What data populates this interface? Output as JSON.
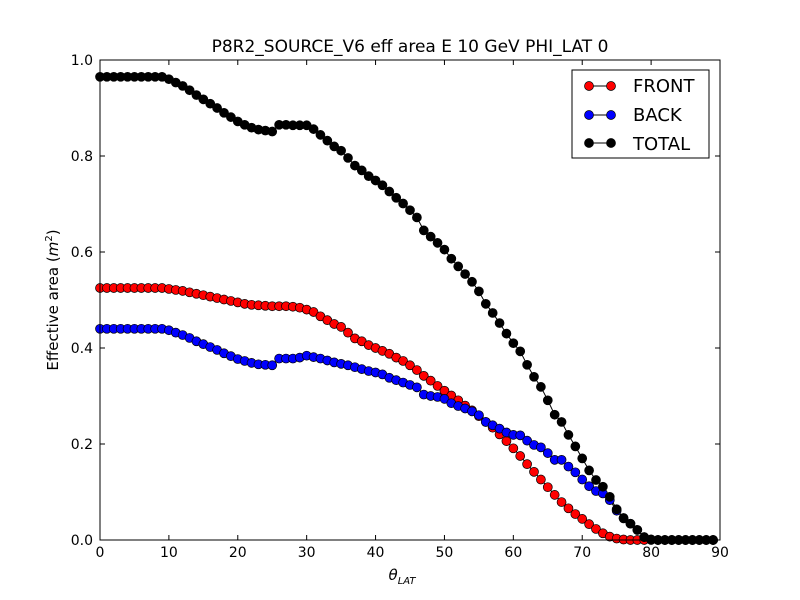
{
  "chart_data": {
    "type": "line",
    "title": "P8R2_SOURCE_V6 eff area E 10 GeV PHI_LAT 0",
    "xlabel_base": "θ",
    "xlabel_sub": "LAT",
    "ylabel_prefix": "Effective area (",
    "ylabel_unit": "m",
    "ylabel_exp": "2",
    "ylabel_suffix": ")",
    "xlim": [
      0,
      90
    ],
    "ylim": [
      0,
      1.0
    ],
    "xticks": [
      0,
      10,
      20,
      30,
      40,
      50,
      60,
      70,
      80,
      90
    ],
    "xtick_labels": [
      "0",
      "10",
      "20",
      "30",
      "40",
      "50",
      "60",
      "70",
      "80",
      "90"
    ],
    "yticks": [
      0,
      0.2,
      0.4,
      0.6,
      0.8,
      1.0
    ],
    "ytick_labels": [
      "0.0",
      "0.2",
      "0.4",
      "0.6",
      "0.8",
      "1.0"
    ],
    "grid": false,
    "legend_position": "top-right",
    "x": [
      0,
      1,
      2,
      3,
      4,
      5,
      6,
      7,
      8,
      9,
      10,
      11,
      12,
      13,
      14,
      15,
      16,
      17,
      18,
      19,
      20,
      21,
      22,
      23,
      24,
      25,
      26,
      27,
      28,
      29,
      30,
      31,
      32,
      33,
      34,
      35,
      36,
      37,
      38,
      39,
      40,
      41,
      42,
      43,
      44,
      45,
      46,
      47,
      48,
      49,
      50,
      51,
      52,
      53,
      54,
      55,
      56,
      57,
      58,
      59,
      60,
      61,
      62,
      63,
      64,
      65,
      66,
      67,
      68,
      69,
      70,
      71,
      72,
      73,
      74,
      75,
      76,
      77,
      78,
      79,
      80,
      81,
      82,
      83,
      84,
      85,
      86,
      87,
      88,
      89
    ],
    "series": [
      {
        "name": "FRONT",
        "color": "#ff0000",
        "values": [
          0.525,
          0.525,
          0.525,
          0.525,
          0.525,
          0.525,
          0.525,
          0.525,
          0.525,
          0.525,
          0.523,
          0.521,
          0.519,
          0.516,
          0.513,
          0.51,
          0.507,
          0.504,
          0.501,
          0.498,
          0.495,
          0.492,
          0.49,
          0.489,
          0.488,
          0.487,
          0.487,
          0.487,
          0.486,
          0.484,
          0.48,
          0.475,
          0.466,
          0.458,
          0.45,
          0.444,
          0.432,
          0.42,
          0.414,
          0.406,
          0.4,
          0.394,
          0.388,
          0.38,
          0.373,
          0.364,
          0.354,
          0.342,
          0.332,
          0.321,
          0.311,
          0.301,
          0.291,
          0.28,
          0.27,
          0.258,
          0.246,
          0.234,
          0.22,
          0.206,
          0.191,
          0.175,
          0.158,
          0.142,
          0.126,
          0.11,
          0.094,
          0.079,
          0.066,
          0.054,
          0.044,
          0.033,
          0.023,
          0.014,
          0.007,
          0.003,
          0.001,
          0.0,
          0.0,
          0.0,
          0.0,
          0.0,
          0.0,
          0.0,
          0.0,
          0.0,
          0.0,
          0.0,
          0.0,
          0.0
        ]
      },
      {
        "name": "BACK",
        "color": "#0000ff",
        "values": [
          0.44,
          0.44,
          0.44,
          0.44,
          0.44,
          0.44,
          0.44,
          0.44,
          0.44,
          0.44,
          0.437,
          0.432,
          0.427,
          0.421,
          0.414,
          0.408,
          0.402,
          0.396,
          0.389,
          0.383,
          0.377,
          0.373,
          0.369,
          0.366,
          0.365,
          0.364,
          0.378,
          0.378,
          0.378,
          0.38,
          0.384,
          0.381,
          0.378,
          0.374,
          0.37,
          0.367,
          0.364,
          0.36,
          0.356,
          0.352,
          0.349,
          0.345,
          0.338,
          0.333,
          0.328,
          0.323,
          0.318,
          0.303,
          0.3,
          0.298,
          0.294,
          0.285,
          0.279,
          0.274,
          0.268,
          0.26,
          0.246,
          0.239,
          0.232,
          0.224,
          0.219,
          0.218,
          0.207,
          0.198,
          0.193,
          0.181,
          0.167,
          0.167,
          0.153,
          0.141,
          0.126,
          0.112,
          0.102,
          0.097,
          0.083,
          0.061,
          0.045,
          0.034,
          0.021,
          0.006,
          0.001,
          0.0,
          0.0,
          0.0,
          0.0,
          0.0,
          0.0,
          0.0,
          0.0,
          0.0
        ]
      },
      {
        "name": "TOTAL",
        "color": "#000000",
        "values": [
          0.965,
          0.965,
          0.965,
          0.965,
          0.965,
          0.965,
          0.965,
          0.965,
          0.965,
          0.965,
          0.96,
          0.953,
          0.946,
          0.937,
          0.927,
          0.918,
          0.909,
          0.9,
          0.89,
          0.881,
          0.872,
          0.865,
          0.859,
          0.855,
          0.853,
          0.851,
          0.865,
          0.865,
          0.864,
          0.864,
          0.864,
          0.856,
          0.844,
          0.832,
          0.82,
          0.811,
          0.796,
          0.78,
          0.77,
          0.758,
          0.749,
          0.739,
          0.726,
          0.713,
          0.701,
          0.687,
          0.672,
          0.645,
          0.632,
          0.619,
          0.605,
          0.586,
          0.57,
          0.554,
          0.538,
          0.518,
          0.492,
          0.473,
          0.452,
          0.43,
          0.41,
          0.393,
          0.365,
          0.34,
          0.319,
          0.291,
          0.261,
          0.246,
          0.219,
          0.195,
          0.17,
          0.145,
          0.125,
          0.111,
          0.09,
          0.064,
          0.046,
          0.034,
          0.021,
          0.006,
          0.001,
          0.0,
          0.0,
          0.0,
          0.0,
          0.0,
          0.0,
          0.0,
          0.0,
          0.0
        ]
      }
    ]
  }
}
